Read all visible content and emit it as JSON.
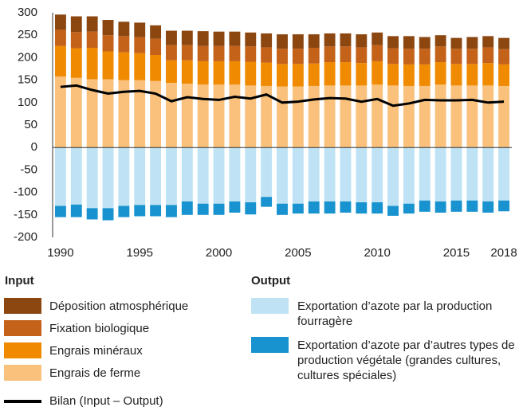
{
  "chart_data": {
    "type": "bar",
    "x": [
      1990,
      1991,
      1992,
      1993,
      1994,
      1995,
      1996,
      1997,
      1998,
      1999,
      2000,
      2001,
      2002,
      2003,
      2004,
      2005,
      2006,
      2007,
      2008,
      2009,
      2010,
      2011,
      2012,
      2013,
      2014,
      2015,
      2016,
      2017,
      2018
    ],
    "xlim": [
      1989.5,
      2018.5
    ],
    "xticks": [
      1990,
      1995,
      2000,
      2005,
      2010,
      2015,
      2018
    ],
    "ylim": [
      -200,
      300
    ],
    "yticks": [
      -200,
      -150,
      -100,
      -50,
      0,
      50,
      100,
      150,
      200,
      250,
      300
    ],
    "legend_groups": [
      "Input",
      "Output"
    ],
    "series": [
      {
        "name": "Déposition atmosphérique",
        "color": "#8c4711",
        "group": "Input",
        "values": [
          34,
          35,
          34,
          34,
          32,
          32,
          30,
          32,
          32,
          33,
          32,
          32,
          31,
          31,
          32,
          32,
          30,
          29,
          29,
          29,
          28,
          27,
          28,
          26,
          25,
          24,
          26,
          25,
          25
        ]
      },
      {
        "name": "Fixation biologique",
        "color": "#c4621a",
        "group": "Input",
        "values": [
          36,
          36,
          36,
          36,
          36,
          36,
          36,
          34,
          34,
          34,
          34,
          34,
          34,
          34,
          34,
          34,
          35,
          35,
          35,
          35,
          36,
          35,
          35,
          35,
          35,
          34,
          34,
          35,
          34
        ]
      },
      {
        "name": "Engrais minéraux",
        "color": "#f08a00",
        "group": "Input",
        "values": [
          68,
          66,
          70,
          62,
          62,
          60,
          58,
          50,
          52,
          52,
          52,
          52,
          53,
          52,
          50,
          50,
          50,
          52,
          52,
          50,
          52,
          48,
          48,
          48,
          50,
          48,
          48,
          50,
          48
        ]
      },
      {
        "name": "Engrais de ferme",
        "color": "#f9c17c",
        "group": "Input",
        "values": [
          158,
          155,
          152,
          152,
          150,
          150,
          148,
          144,
          142,
          140,
          140,
          140,
          138,
          137,
          136,
          136,
          137,
          138,
          138,
          138,
          140,
          138,
          137,
          137,
          140,
          138,
          138,
          138,
          137
        ]
      },
      {
        "name": "Exportation d’azote par la production fourragère",
        "color": "#bfe3f5",
        "group": "Output",
        "values": [
          -130,
          -127,
          -135,
          -135,
          -130,
          -128,
          -128,
          -128,
          -120,
          -125,
          -125,
          -120,
          -122,
          -110,
          -125,
          -125,
          -120,
          -120,
          -120,
          -122,
          -122,
          -130,
          -125,
          -118,
          -120,
          -118,
          -118,
          -120,
          -118
        ]
      },
      {
        "name": "Exportation d’azote par d’autres types de production végétale (grandes cultures, cultures spéciales)",
        "color": "#1893cf",
        "group": "Output",
        "values": [
          -25,
          -28,
          -25,
          -27,
          -25,
          -25,
          -25,
          -27,
          -30,
          -25,
          -25,
          -25,
          -27,
          -22,
          -25,
          -22,
          -27,
          -27,
          -25,
          -25,
          -25,
          -22,
          -22,
          -25,
          -25,
          -25,
          -25,
          -25,
          -24
        ]
      },
      {
        "name": "Bilan (Input – Output)",
        "color": "#000000",
        "type": "line",
        "values": [
          135,
          138,
          128,
          120,
          124,
          126,
          120,
          103,
          112,
          108,
          106,
          113,
          109,
          118,
          100,
          102,
          107,
          110,
          109,
          102,
          108,
          93,
          98,
          106,
          105,
          105,
          106,
          100,
          102
        ]
      }
    ]
  }
}
